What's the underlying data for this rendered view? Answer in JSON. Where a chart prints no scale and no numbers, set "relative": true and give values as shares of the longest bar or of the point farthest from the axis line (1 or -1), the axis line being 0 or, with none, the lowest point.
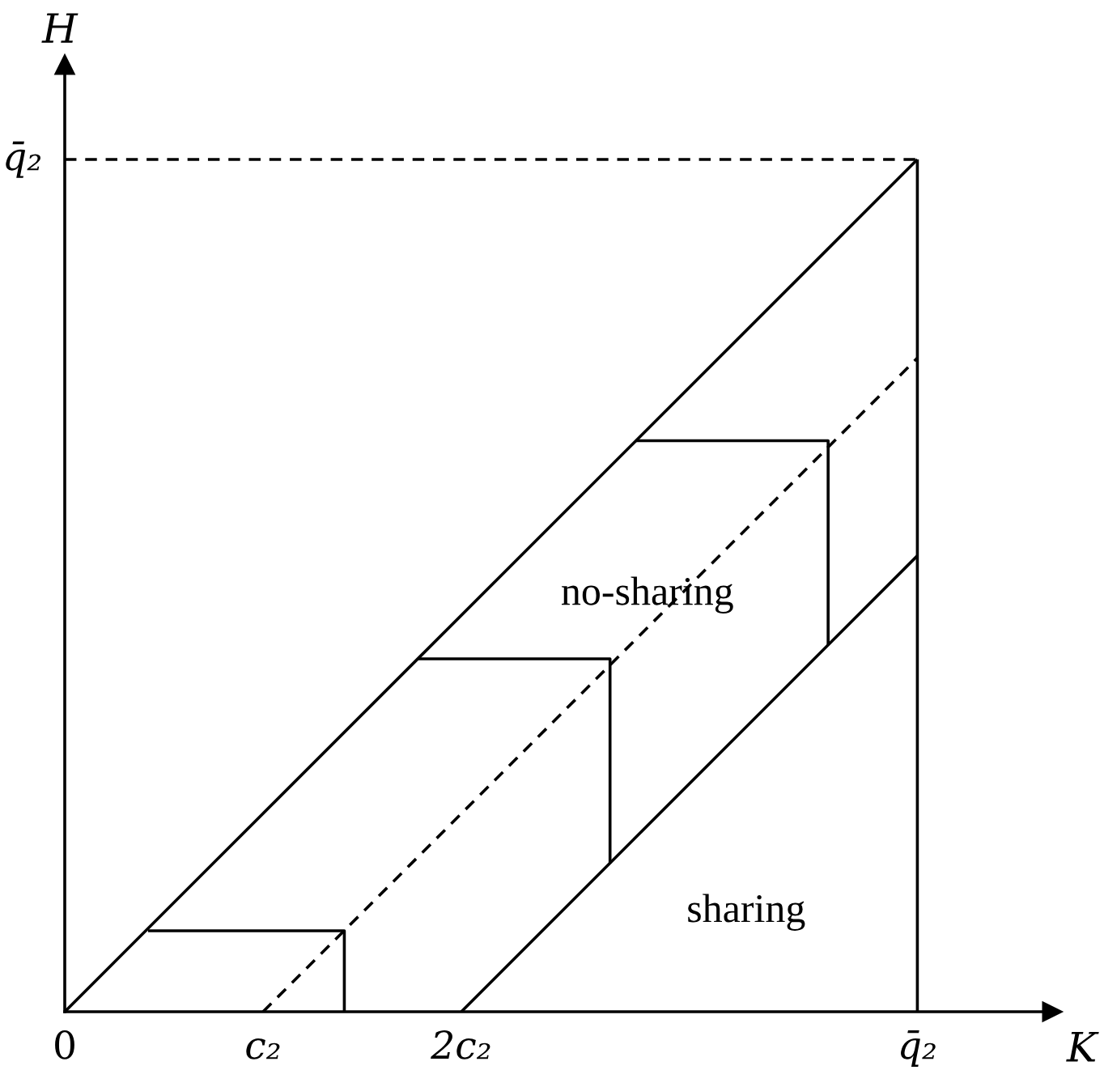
{
  "chart_data": {
    "type": "line",
    "xlabel": "K",
    "ylabel": "H",
    "relative": true,
    "xlim": [
      0,
      4.98
    ],
    "xticks": [
      0,
      {
        "value": 1,
        "label": "c₂"
      },
      {
        "value": 2,
        "label": "2c₂"
      },
      {
        "value": 4.3,
        "label": "q̄₂"
      }
    ],
    "grid": false,
    "legend": false,
    "marker": "none",
    "series": [
      {
        "color": "#000000",
        "line_style": "solid",
        "x": [
          0,
          4.3
        ],
        "values": [
          0,
          1
        ]
      },
      {
        "color": "#000000",
        "line_style": "dashed",
        "x": [
          1,
          4.3
        ],
        "values": [
          0,
          0.767
        ]
      },
      {
        "color": "#000000",
        "line_style": "solid",
        "x": [
          2,
          4.3
        ],
        "values": [
          0,
          0.535
        ]
      },
      {
        "color": "#000000",
        "line_style": "solid",
        "x": [
          4.3,
          4.3
        ],
        "values": [
          0,
          1
        ]
      },
      {
        "color": "#000000",
        "line_style": "dashed",
        "x": [
          0,
          4.3
        ],
        "values": [
          1,
          1
        ]
      },
      {
        "color": "#000000",
        "line_style": "solid",
        "x": [
          0.42,
          1.41,
          1.41
        ],
        "values": [
          0.095,
          0.095,
          0
        ]
      },
      {
        "color": "#000000",
        "line_style": "solid",
        "x": [
          1.78,
          2.75,
          2.75
        ],
        "values": [
          0.414,
          0.414,
          0.174
        ]
      },
      {
        "color": "#000000",
        "line_style": "solid",
        "x": [
          2.88,
          3.85,
          3.85
        ],
        "values": [
          0.67,
          0.67,
          0.43
        ]
      }
    ],
    "annotations": [
      {
        "text": "q̄₂",
        "x": 0,
        "y": 1
      },
      "no-sharing",
      "sharing"
    ]
  }
}
